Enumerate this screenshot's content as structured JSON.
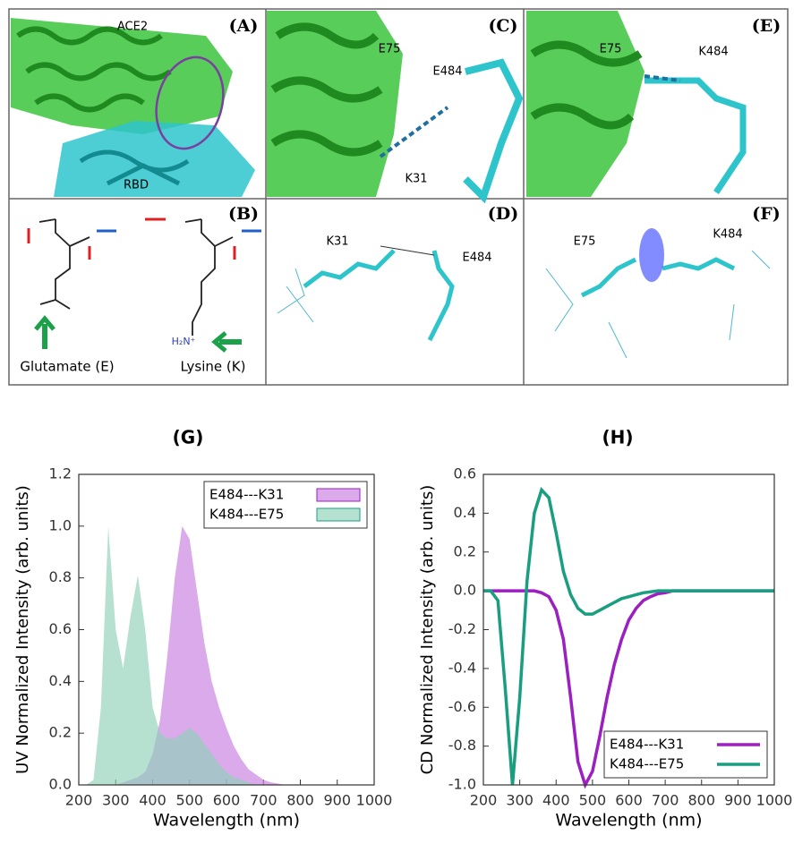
{
  "panels": [
    {
      "label": "(A)",
      "texts": [
        "ACE2",
        "RBD"
      ]
    },
    {
      "label": "(B)",
      "texts": [
        "Glutamate (E)",
        "Lysine (K)",
        "H₂N⁺"
      ]
    },
    {
      "label": "(C)",
      "texts": [
        "E75",
        "E484",
        "K31"
      ]
    },
    {
      "label": "(D)",
      "texts": [
        "K31",
        "E484"
      ]
    },
    {
      "label": "(E)",
      "texts": [
        "E75",
        "K484"
      ]
    },
    {
      "label": "(F)",
      "texts": [
        "E75",
        "K484"
      ]
    }
  ],
  "chart_data": [
    {
      "type": "area",
      "title": "(G)",
      "xlabel": "Wavelength (nm)",
      "ylabel": "UV Normalized Intensity (arb. units)",
      "x": [
        200,
        220,
        240,
        260,
        280,
        300,
        320,
        340,
        360,
        380,
        400,
        420,
        440,
        460,
        480,
        500,
        520,
        540,
        560,
        580,
        600,
        620,
        640,
        660,
        680,
        700,
        720,
        740,
        760,
        780,
        800
      ],
      "series": [
        {
          "name": "E484---K31",
          "color": "#c77dde",
          "edge": "#9b1fc1",
          "values": [
            0,
            0,
            0,
            0,
            0,
            0,
            0.01,
            0.02,
            0.03,
            0.05,
            0.12,
            0.25,
            0.5,
            0.8,
            1.0,
            0.95,
            0.75,
            0.55,
            0.4,
            0.3,
            0.22,
            0.15,
            0.1,
            0.06,
            0.04,
            0.02,
            0.01,
            0.005,
            0,
            0,
            0
          ]
        },
        {
          "name": "K484---E75",
          "color": "#8fd1b8",
          "edge": "#1a9e80",
          "values": [
            0,
            0,
            0.02,
            0.3,
            1.0,
            0.6,
            0.45,
            0.65,
            0.81,
            0.6,
            0.3,
            0.2,
            0.18,
            0.18,
            0.2,
            0.22,
            0.2,
            0.16,
            0.12,
            0.08,
            0.05,
            0.03,
            0.02,
            0.01,
            0,
            0,
            0,
            0,
            0,
            0,
            0
          ]
        }
      ],
      "xlim": [
        200,
        1000
      ],
      "xticks": [
        200,
        300,
        400,
        500,
        600,
        700,
        800,
        900,
        1000
      ],
      "ylim": [
        0,
        1.2
      ],
      "yticks": [
        {
          "value": 0,
          "label": "0.0"
        },
        0.2,
        0.4,
        0.6,
        0.8,
        {
          "value": 1,
          "label": "1.0"
        },
        1.2
      ],
      "legend": "upper right"
    },
    {
      "type": "line",
      "title": "(H)",
      "xlabel": "Wavelength (nm)",
      "ylabel": "CD Normalized Intensity (arb. units)",
      "x": [
        200,
        220,
        240,
        260,
        280,
        300,
        320,
        340,
        360,
        380,
        400,
        420,
        440,
        460,
        480,
        500,
        520,
        540,
        560,
        580,
        600,
        620,
        640,
        660,
        680,
        700,
        720,
        740,
        760,
        780,
        800,
        820,
        840,
        860,
        880,
        900,
        920,
        940,
        960,
        980,
        1000
      ],
      "series": [
        {
          "name": "E484---K31",
          "color": "#9b1fc1",
          "values": [
            0,
            0,
            0,
            0,
            0,
            0,
            0,
            0,
            -0.01,
            -0.03,
            -0.1,
            -0.25,
            -0.55,
            -0.88,
            -1.0,
            -0.93,
            -0.75,
            -0.55,
            -0.38,
            -0.25,
            -0.15,
            -0.09,
            -0.05,
            -0.03,
            -0.015,
            -0.01,
            0,
            0,
            0,
            0,
            0,
            0,
            0,
            0,
            0,
            0,
            0,
            0,
            0,
            0,
            0
          ]
        },
        {
          "name": "K484---E75",
          "color": "#1a9e80",
          "values": [
            0,
            0,
            -0.05,
            -0.5,
            -1.0,
            -0.55,
            0.05,
            0.4,
            0.52,
            0.48,
            0.3,
            0.1,
            -0.02,
            -0.09,
            -0.12,
            -0.12,
            -0.1,
            -0.08,
            -0.06,
            -0.04,
            -0.03,
            -0.02,
            -0.01,
            -0.005,
            0,
            0,
            0,
            0,
            0,
            0,
            0,
            0,
            0,
            0,
            0,
            0,
            0,
            0,
            0,
            0,
            0
          ]
        }
      ],
      "xlim": [
        200,
        1000
      ],
      "xticks": [
        200,
        300,
        400,
        500,
        600,
        700,
        800,
        900,
        1000
      ],
      "ylim": [
        -1,
        0.6
      ],
      "yticks": [
        {
          "value": -1,
          "label": "-1.0"
        },
        -0.8,
        -0.6,
        -0.4,
        -0.2,
        {
          "value": 0,
          "label": "0.0"
        },
        0.2,
        0.4,
        0.6
      ],
      "legend": "lower right"
    }
  ]
}
